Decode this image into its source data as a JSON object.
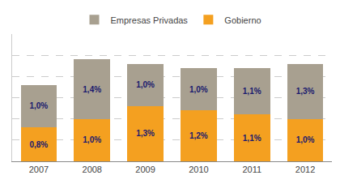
{
  "chart_data": {
    "type": "bar",
    "stacked": true,
    "categories": [
      "2007",
      "2008",
      "2009",
      "2010",
      "2011",
      "2012"
    ],
    "series": [
      {
        "name": "Gobierno",
        "color": "#F4A020",
        "values": [
          0.8,
          1.0,
          1.3,
          1.2,
          1.1,
          1.0
        ],
        "value_labels": [
          "0,8%",
          "1,0%",
          "1,3%",
          "1,2%",
          "1,1%",
          "1,0%"
        ]
      },
      {
        "name": "Empresas Privadas",
        "color": "#A8A090",
        "values": [
          1.0,
          1.4,
          1.0,
          1.0,
          1.1,
          1.3
        ],
        "value_labels": [
          "1,0%",
          "1,4%",
          "1,0%",
          "1,0%",
          "1,1%",
          "1,3%"
        ]
      }
    ],
    "ylim": [
      0,
      3.0
    ],
    "yticks": [
      0.5,
      1.0,
      1.5,
      2.0,
      2.5
    ],
    "grid": true,
    "tick_labels": "x",
    "legend": "top",
    "data_labels": true
  }
}
